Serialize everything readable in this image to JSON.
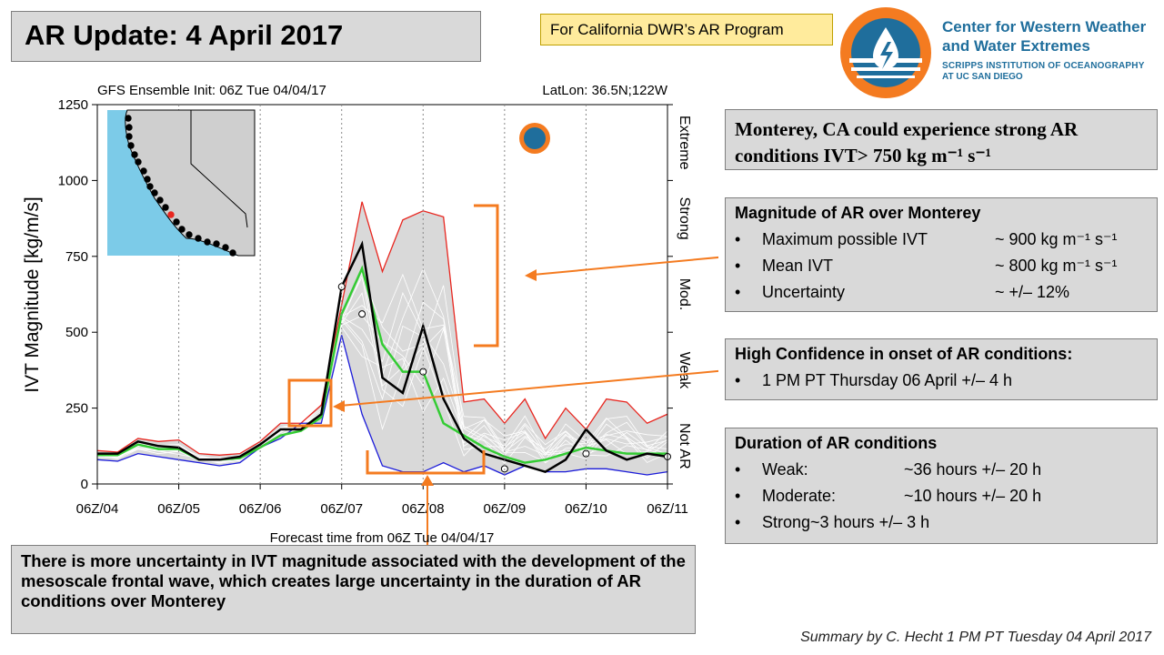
{
  "header": {
    "title": "AR Update: 4 April 2017",
    "program": "For California DWR’s AR Program",
    "logo": {
      "line1": "Center for Western Weather",
      "line2": "and Water Extremes",
      "line3": "SCRIPPS INSTITUTION OF OCEANOGRAPHY",
      "line4": "AT UC SAN DIEGO"
    }
  },
  "chart_data": {
    "type": "line",
    "title_left": "GFS Ensemble Init: 06Z Tue 04/04/17",
    "title_right": "LatLon: 36.5N;122W",
    "xlabel": "Forecast time from 06Z Tue 04/04/17",
    "ylabel": "IVT Magnitude [kg/m/s]",
    "ylim": [
      0,
      1250
    ],
    "yticks": [
      "0",
      "250",
      "500",
      "750",
      "1000",
      "1250"
    ],
    "xticks": [
      "06Z/04",
      "06Z/05",
      "06Z/06",
      "06Z/07",
      "06Z/08",
      "06Z/09",
      "06Z/10",
      "06Z/11"
    ],
    "x_hours_range": [
      0,
      168
    ],
    "categories_right": [
      {
        "label": "Extreme",
        "from": 1000,
        "to": 1250
      },
      {
        "label": "Strong",
        "from": 750,
        "to": 1000
      },
      {
        "label": "Mod.",
        "from": 500,
        "to": 750
      },
      {
        "label": "Weak",
        "from": 250,
        "to": 500
      },
      {
        "label": "Not AR",
        "from": 0,
        "to": 250
      }
    ],
    "x_hours": [
      0,
      6,
      12,
      18,
      24,
      30,
      36,
      42,
      48,
      54,
      60,
      66,
      72,
      78,
      84,
      90,
      96,
      102,
      108,
      114,
      120,
      126,
      132,
      138,
      144,
      150,
      156,
      162,
      168
    ],
    "series": [
      {
        "name": "Max",
        "color": "#e8261f",
        "values": [
          110,
          105,
          150,
          140,
          145,
          100,
          95,
          100,
          140,
          200,
          200,
          260,
          590,
          930,
          700,
          870,
          900,
          880,
          270,
          280,
          200,
          280,
          150,
          250,
          180,
          280,
          270,
          200,
          230
        ]
      },
      {
        "name": "Min",
        "color": "#1c1cd9",
        "values": [
          80,
          75,
          100,
          90,
          80,
          70,
          60,
          70,
          120,
          150,
          200,
          200,
          490,
          230,
          60,
          40,
          40,
          70,
          40,
          60,
          30,
          60,
          40,
          40,
          50,
          50,
          40,
          30,
          40
        ]
      },
      {
        "name": "Control",
        "color": "#000000",
        "values": [
          100,
          100,
          140,
          125,
          120,
          80,
          80,
          90,
          130,
          180,
          180,
          230,
          650,
          790,
          350,
          300,
          520,
          280,
          150,
          100,
          80,
          60,
          40,
          80,
          180,
          110,
          80,
          100,
          90
        ]
      },
      {
        "name": "Mean",
        "color": "#33cc33",
        "values": [
          95,
          95,
          130,
          115,
          115,
          80,
          80,
          85,
          120,
          160,
          175,
          220,
          560,
          710,
          460,
          370,
          370,
          200,
          160,
          120,
          90,
          70,
          80,
          100,
          120,
          110,
          100,
          100,
          100
        ]
      }
    ],
    "inset_map": "California coastline with storm track points"
  },
  "summary_box": {
    "statement": "Monterey, CA could experience strong AR conditions IVT> 750 kg m⁻¹ s⁻¹"
  },
  "magnitude": {
    "heading": "Magnitude of AR over Monterey",
    "items": [
      {
        "label": "Maximum possible IVT",
        "value": "~ 900 kg m⁻¹ s⁻¹"
      },
      {
        "label": "Mean IVT",
        "value": "~ 800 kg m⁻¹ s⁻¹"
      },
      {
        "label": "Uncertainty",
        "value": "~ +/– 12%"
      }
    ]
  },
  "onset": {
    "heading": "High Confidence in onset of AR conditions:",
    "item": "1 PM PT Thursday 06 April +/– 4 h"
  },
  "duration": {
    "heading": "Duration of AR conditions",
    "items": [
      {
        "label": "Weak:",
        "value": "~36 hours +/– 20 h"
      },
      {
        "label": "Moderate:",
        "value": "~10 hours +/– 20 h"
      },
      {
        "label": "Strong",
        "value": "~3 hours  +/– 3 h"
      }
    ]
  },
  "bottom_note": "There is more uncertainty in IVT magnitude associated with the development of the mesoscale frontal wave, which creates large uncertainty in the duration of AR conditions over Monterey",
  "footer": "Summary by C. Hecht 1 PM PT Tuesday 04 April 2017",
  "colors": {
    "annotation": "#f47b20",
    "panel_bg": "#d9d9d9",
    "program_bg": "#ffeb9c"
  }
}
